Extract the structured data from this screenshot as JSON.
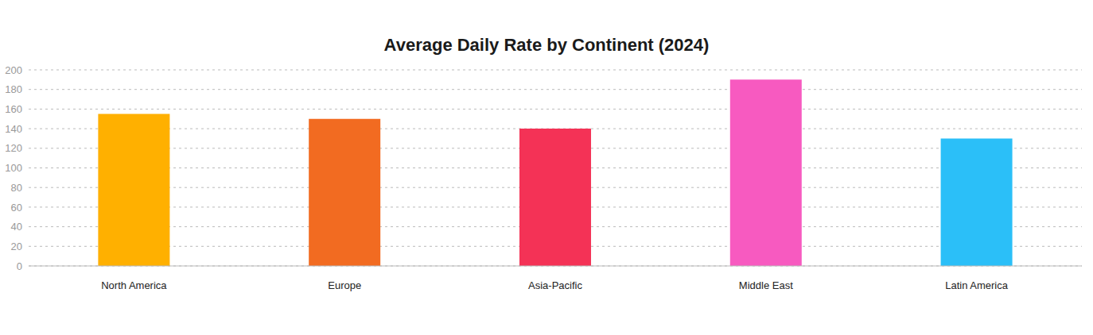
{
  "chart_data": {
    "type": "bar",
    "title": "Average Daily Rate by Continent (2024)",
    "categories": [
      "North America",
      "Europe",
      "Asia-Pacific",
      "Middle East",
      "Latin America"
    ],
    "values": [
      155,
      150,
      140,
      190,
      130
    ],
    "colors": [
      "#ffb000",
      "#f26b21",
      "#f43256",
      "#f75ac0",
      "#2bbff8"
    ],
    "ylim": [
      0,
      200
    ],
    "yticks": [
      0,
      20,
      40,
      60,
      80,
      100,
      120,
      140,
      160,
      180,
      200
    ],
    "grid": true
  }
}
